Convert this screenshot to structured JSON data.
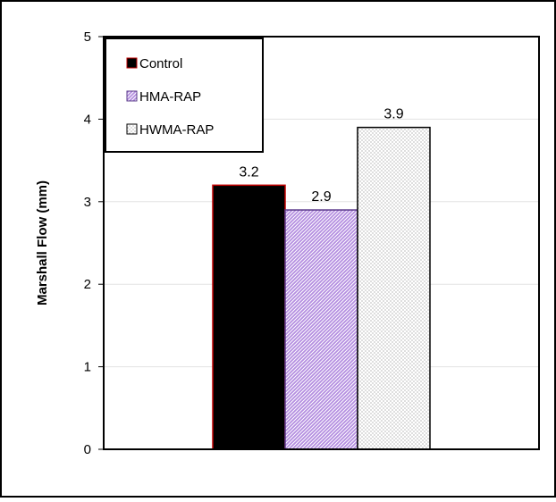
{
  "chart_data": {
    "type": "bar",
    "categories": [
      ""
    ],
    "series": [
      {
        "name": "Control",
        "values": [
          3.2
        ],
        "color": "#000000",
        "border": "#c00000",
        "pattern": "solid"
      },
      {
        "name": "HMA-RAP",
        "values": [
          2.9
        ],
        "color": "#b48ee0",
        "border": "#5a3a8a",
        "pattern": "diagonal-hatch"
      },
      {
        "name": "HWMA-RAP",
        "values": [
          3.9
        ],
        "color": "#ffffff",
        "border": "#000000",
        "pattern": "dots"
      }
    ],
    "data_labels": [
      "3.2",
      "2.9",
      "3.9"
    ],
    "title": "",
    "xlabel": "",
    "ylabel": "Marshall Flow (mm)",
    "ylim": [
      0,
      5
    ],
    "yticks": [
      "0",
      "1",
      "2",
      "3",
      "4",
      "5"
    ],
    "grid": true,
    "legend_position": "top-left"
  }
}
